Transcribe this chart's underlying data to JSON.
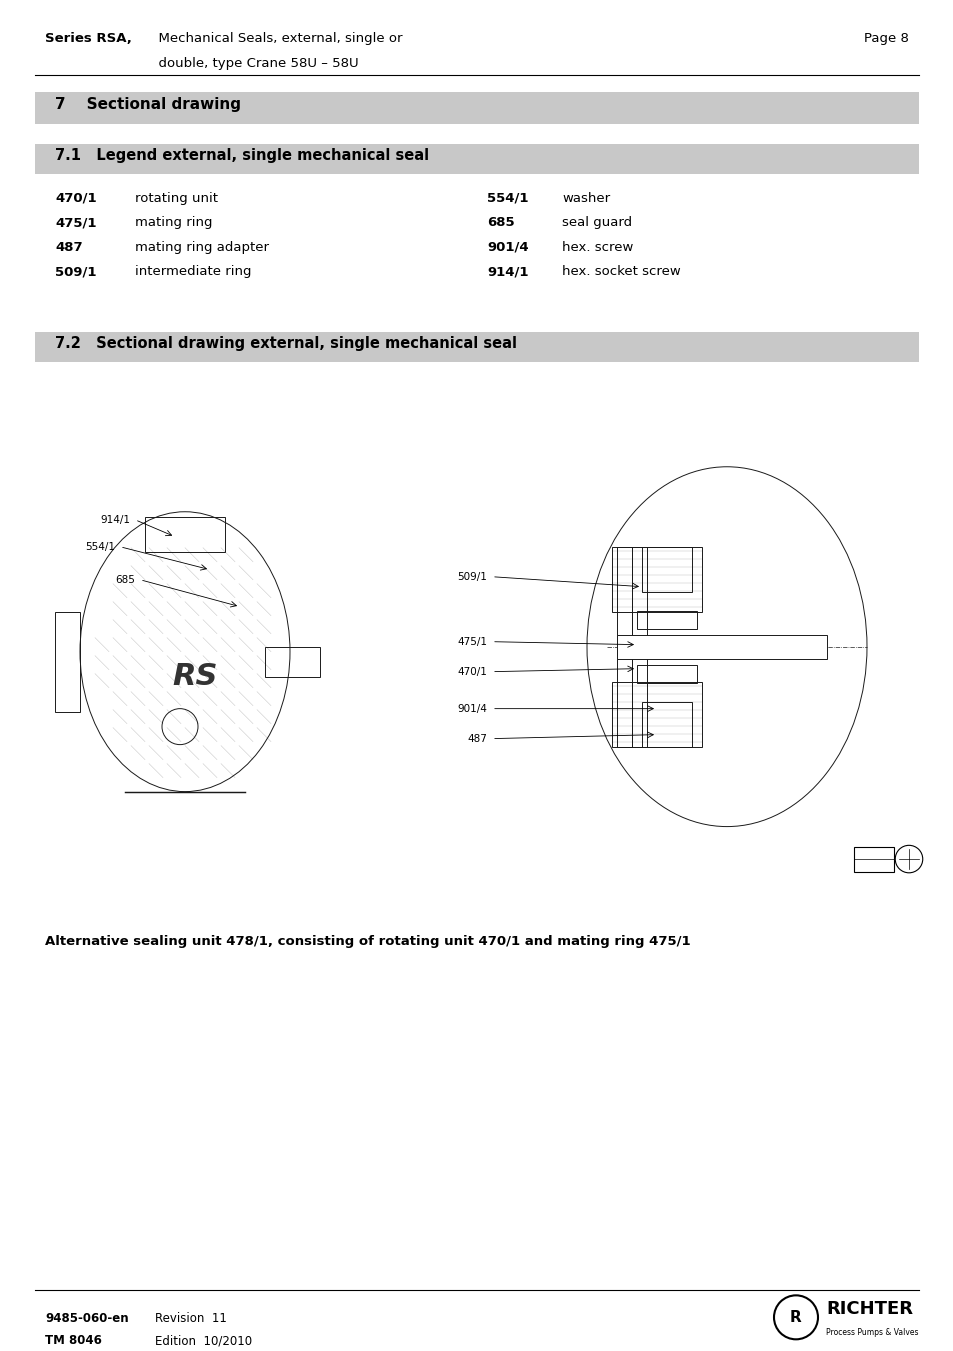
{
  "page_width": 9.54,
  "page_height": 13.51,
  "bg_color": "#ffffff",
  "header": {
    "series_bold": "Series RSA,",
    "series_text": "  Mechanical Seals, external, single or\n  double, type Crane 58U – 58U",
    "page_label": "Page 8"
  },
  "section7_title": "7    Sectional drawing",
  "section71_title": "7.1   Legend external, single mechanical seal",
  "legend_left": [
    {
      "code": "470/1",
      "desc": "rotating unit"
    },
    {
      "code": "475/1",
      "desc": "mating ring"
    },
    {
      "code": "487",
      "desc": "mating ring adapter"
    },
    {
      "code": "509/1",
      "desc": "intermediate ring"
    }
  ],
  "legend_right": [
    {
      "code": "554/1",
      "desc": "washer"
    },
    {
      "code": "685",
      "desc": "seal guard"
    },
    {
      "code": "901/4",
      "desc": "hex. screw"
    },
    {
      "code": "914/1",
      "desc": "hex. socket screw"
    }
  ],
  "section72_title": "7.2   Sectional drawing external, single mechanical seal",
  "alt_text": "Alternative sealing unit 478/1, consisting of rotating unit 470/1 and mating ring 475/1",
  "footer_left1": "9485-060-en",
  "footer_left2": "TM 8046",
  "footer_right1": "Revision  11",
  "footer_right2": "Edition  10/2010",
  "header_bg": "#c8c8c8",
  "section_bg": "#c8c8c8",
  "subsection_bg": "#c8c8c8"
}
